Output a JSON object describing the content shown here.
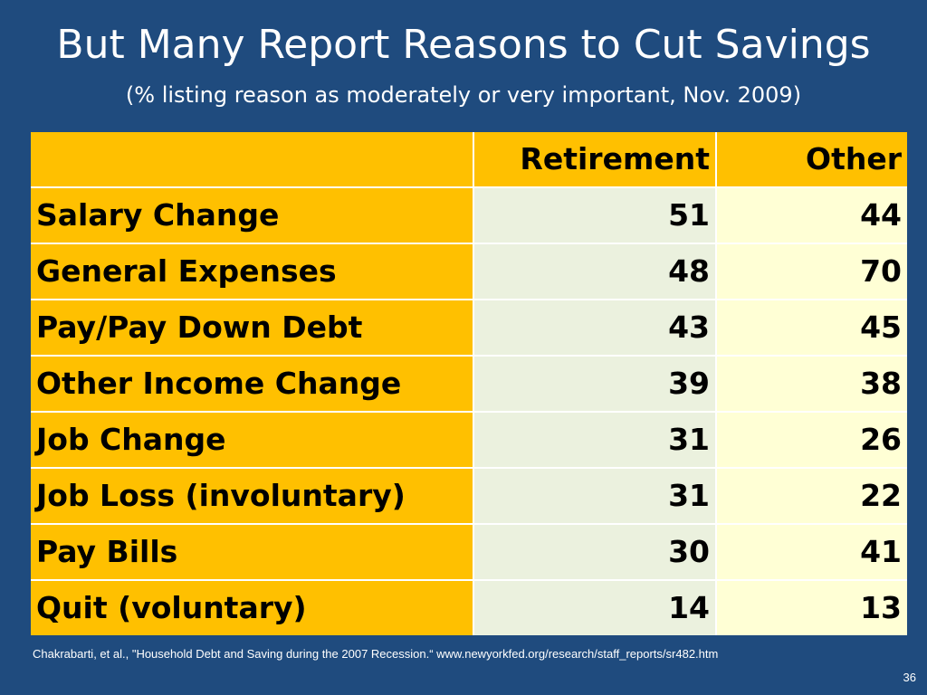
{
  "slide": {
    "title": "But Many Report Reasons to Cut Savings",
    "subtitle": "(% listing reason as moderately or very important, Nov. 2009)",
    "source": "Chakrabarti, et al., \"Household Debt and Saving during the 2007 Recession.“  www.newyorkfed.org/research/staff_reports/sr482.htm",
    "page_number": "36"
  },
  "colors": {
    "background": "#1f4b7e",
    "header_fill": "#ffc000",
    "retirement_fill": "#ebf1de",
    "other_fill": "#ffffd5"
  },
  "chart_data": {
    "type": "table",
    "columns": [
      "Retirement",
      "Other"
    ],
    "rows": [
      {
        "label": "Salary Change",
        "values": [
          51,
          44
        ]
      },
      {
        "label": "General Expenses",
        "values": [
          48,
          70
        ]
      },
      {
        "label": "Pay/Pay Down Debt",
        "values": [
          43,
          45
        ]
      },
      {
        "label": "Other Income Change",
        "values": [
          39,
          38
        ]
      },
      {
        "label": "Job Change",
        "values": [
          31,
          26
        ]
      },
      {
        "label": "Job Loss (involuntary)",
        "values": [
          31,
          22
        ]
      },
      {
        "label": "Pay Bills",
        "values": [
          30,
          41
        ]
      },
      {
        "label": "Quit (voluntary)",
        "values": [
          14,
          13
        ]
      }
    ]
  }
}
